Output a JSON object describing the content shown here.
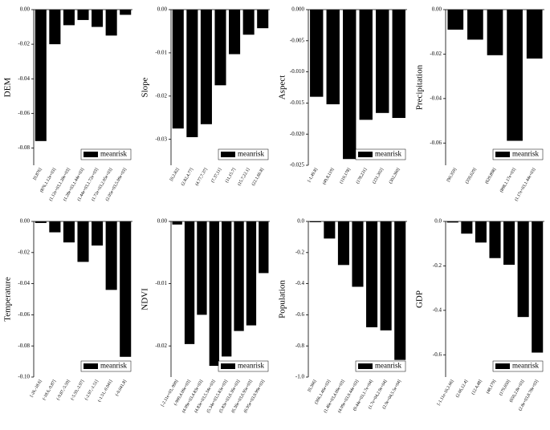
{
  "chart_data": [
    {
      "type": "bar",
      "y_label": "DEM",
      "categories": [
        "[0,876]",
        "(876,1.12e+03]",
        "(1.12e+03,1.28e+03]",
        "(1.28e+03,1.44e+03]",
        "(1.44e+03,1.72e+03]",
        "(1.72e+03,2.05e+03]",
        "(2.05e+03,5.09e+03]"
      ],
      "series": [
        {
          "name": "meanrisk",
          "color": "#000000",
          "values": [
            -0.076,
            -0.02,
            -0.009,
            -0.006,
            -0.01,
            -0.015,
            -0.003
          ]
        }
      ],
      "ylim": [
        -0.09,
        0
      ],
      "yticks": [
        {
          "value": 0,
          "label": "0.00"
        },
        -0.02,
        -0.04,
        -0.06,
        -0.08
      ],
      "legend": "lower right"
    },
    {
      "type": "bar",
      "y_label": "Slope",
      "categories": [
        "[0,2.82]",
        "(2.82,4.77]",
        "(4.77,7.37]",
        "(7.37,11]",
        "(11,15.7]",
        "(15.7,22.1]",
        "(22.1,66.8]"
      ],
      "series": [
        {
          "name": "meanrisk",
          "color": "#000000",
          "values": [
            -0.0275,
            -0.0295,
            -0.0265,
            -0.0175,
            -0.0103,
            -0.0058,
            -0.0043
          ]
        }
      ],
      "ylim": [
        -0.036,
        0
      ],
      "yticks": [
        {
          "value": 0,
          "label": "0.00"
        },
        -0.01,
        -0.02,
        -0.03
      ],
      "legend": "lower right"
    },
    {
      "type": "bar",
      "y_label": "Aspect",
      "categories": [
        "[-1,49.8]",
        "(49.8,119]",
        "(119,178]",
        "(178,231]",
        "(231,302]",
        "(302,360]"
      ],
      "series": [
        {
          "name": "meanrisk",
          "color": "#000000",
          "values": [
            -0.014,
            -0.0152,
            -0.024,
            -0.0177,
            -0.0166,
            -0.0174
          ]
        }
      ],
      "ylim": [
        -0.025,
        0
      ],
      "yticks": [
        {
          "value": 0,
          "label": "0.000"
        },
        -0.005,
        {
          "value": -0.01,
          "label": "-0.010"
        },
        -0.015,
        {
          "value": -0.02,
          "label": "-0.020"
        },
        -0.025
      ],
      "legend": "lower right"
    },
    {
      "type": "bar",
      "y_label": "Precipitation",
      "categories": [
        "[90,359]",
        "(359,629]",
        "(629,898]",
        "(898,1.17e+03]",
        "(1.17e+03,1.44e+03]"
      ],
      "series": [
        {
          "name": "meanrisk",
          "color": "#000000",
          "values": [
            -0.009,
            -0.0135,
            -0.0205,
            -0.059,
            -0.022
          ]
        }
      ],
      "ylim": [
        -0.07,
        0
      ],
      "yticks": [
        {
          "value": 0,
          "label": "0.00"
        },
        -0.02,
        -0.04,
        -0.06
      ],
      "legend": "lower right"
    },
    {
      "type": "bar",
      "y_label": "Temperature",
      "categories": [
        "[-26,-18.6]",
        "(-18.6,-9.87]",
        "(-9.87,-5.59]",
        "(-5.59,-2.97]",
        "(-2.97,-1.51]",
        "(-1.51,-0.041]",
        "(-0.041,8]"
      ],
      "series": [
        {
          "name": "meanrisk",
          "color": "#000000",
          "values": [
            -0.001,
            -0.007,
            -0.0135,
            -0.026,
            -0.0155,
            -0.044,
            -0.087
          ]
        }
      ],
      "ylim": [
        -0.1,
        0
      ],
      "yticks": [
        {
          "value": 0,
          "label": "0.00"
        },
        -0.02,
        -0.04,
        -0.06,
        -0.08,
        {
          "value": -0.1,
          "label": "-0.10"
        }
      ],
      "legend": "lower right"
    },
    {
      "type": "bar",
      "y_label": "NDVI",
      "categories": [
        "[-2.11e+03,-999]",
        "(-999,4.09e+03]",
        "(4.09e+03,4.83e+03]",
        "(4.83e+03,5.34e+03]",
        "(5.34e+03,5.83e+03]",
        "(5.83e+03,6.36e+03]",
        "(6.36e+03,6.95e+03]",
        "(6.95e+03,9.99e+03]"
      ],
      "series": [
        {
          "name": "meanrisk",
          "color": "#000000",
          "values": [
            -0.0005,
            -0.0197,
            -0.015,
            -0.0232,
            -0.0217,
            -0.0176,
            -0.0167,
            -0.0083
          ]
        }
      ],
      "ylim": [
        -0.025,
        0
      ],
      "yticks": [
        {
          "value": 0,
          "label": "0.00"
        },
        -0.01,
        -0.02
      ],
      "legend": "lower right"
    },
    {
      "type": "bar",
      "y_label": "Population",
      "categories": [
        "[0,366]",
        "(366,1.46e+03]",
        "(1.46e+03,4.09e+03]",
        "(4.09e+03,9.44e+03]",
        "(9.44e+03,1.7e+04]",
        "(1.7e+04,2.9e+04]",
        "(2.9e+04,5.5e+04]"
      ],
      "series": [
        {
          "name": "meanrisk",
          "color": "#000000",
          "values": [
            -0.005,
            -0.11,
            -0.28,
            -0.42,
            -0.68,
            -0.7,
            -0.89
          ]
        }
      ],
      "ylim": [
        -1,
        0
      ],
      "yticks": [
        {
          "value": 0,
          "label": "0.0"
        },
        -0.2,
        -0.4,
        -0.6,
        -0.8,
        {
          "value": -1,
          "label": "-1.0"
        }
      ],
      "legend": "lower right"
    },
    {
      "type": "bar",
      "y_label": "GDP",
      "categories": [
        "[-1.11e-16,2.66]",
        "(2.66,12.4]",
        "(12.4,48]",
        "(48,179]",
        "(179,650]",
        "(650,2.8e+03]",
        "(2.8e+03,8.78e+03]"
      ],
      "series": [
        {
          "name": "meanrisk",
          "color": "#000000",
          "values": [
            -0.005,
            -0.055,
            -0.095,
            -0.165,
            -0.195,
            -0.43,
            -0.59
          ]
        }
      ],
      "ylim": [
        -0.7,
        0
      ],
      "yticks": [
        {
          "value": 0,
          "label": "0.0"
        },
        -0.2,
        -0.4,
        -0.6
      ],
      "legend": "lower right"
    }
  ]
}
